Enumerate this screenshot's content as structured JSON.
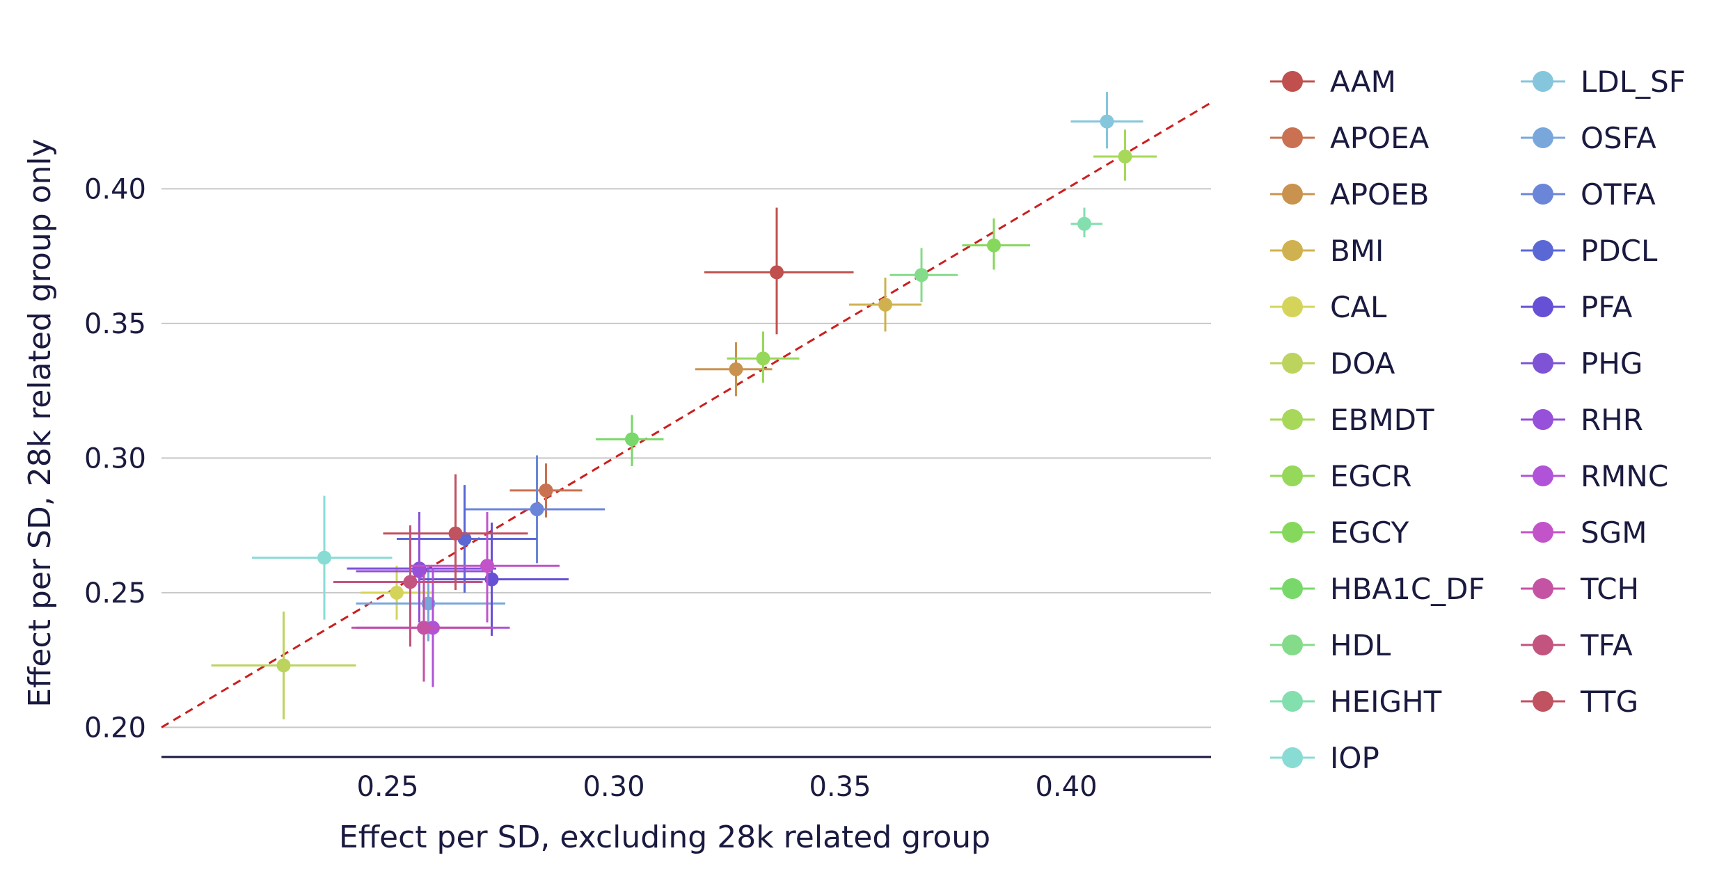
{
  "chart_data": {
    "type": "scatter",
    "title": "",
    "xlabel": "Effect per SD, excluding 28k related group",
    "ylabel": "Effect per SD, 28k related group only",
    "xlim": [
      0.2,
      0.432
    ],
    "ylim": [
      0.189,
      0.443
    ],
    "xticks": [
      "0.25",
      "0.30",
      "0.35",
      "0.40"
    ],
    "yticks": [
      "0.20",
      "0.25",
      "0.30",
      "0.35",
      "0.40"
    ],
    "grid": "horizontal",
    "legend_position": "right, two columns",
    "reference_line": {
      "style": "dashed",
      "color": "#cc1f1f",
      "from": [
        0.2,
        0.2
      ],
      "to": [
        0.432,
        0.432
      ]
    },
    "series": [
      {
        "name": "AAM",
        "color": "#c0504d",
        "x": 0.336,
        "y": 0.369,
        "xerr": [
          0.32,
          0.353
        ],
        "yerr": [
          0.346,
          0.393
        ]
      },
      {
        "name": "APOEA",
        "color": "#c97150",
        "x": 0.285,
        "y": 0.288,
        "xerr": [
          0.277,
          0.293
        ],
        "yerr": [
          0.278,
          0.298
        ]
      },
      {
        "name": "APOEB",
        "color": "#c9934f",
        "x": 0.327,
        "y": 0.333,
        "xerr": [
          0.318,
          0.335
        ],
        "yerr": [
          0.323,
          0.343
        ]
      },
      {
        "name": "BMI",
        "color": "#cfb24f",
        "x": 0.36,
        "y": 0.357,
        "xerr": [
          0.352,
          0.368
        ],
        "yerr": [
          0.347,
          0.367
        ]
      },
      {
        "name": "CAL",
        "color": "#d4d45a",
        "x": 0.252,
        "y": 0.25,
        "xerr": [
          0.244,
          0.26
        ],
        "yerr": [
          0.24,
          0.26
        ]
      },
      {
        "name": "DOA",
        "color": "#bcd45e",
        "x": 0.227,
        "y": 0.223,
        "xerr": [
          0.211,
          0.243
        ],
        "yerr": [
          0.203,
          0.243
        ]
      },
      {
        "name": "EBMDT",
        "color": "#a7d85a",
        "x": 0.413,
        "y": 0.412,
        "xerr": [
          0.406,
          0.42
        ],
        "yerr": [
          0.403,
          0.422
        ]
      },
      {
        "name": "EGCR",
        "color": "#96d85a",
        "x": 0.333,
        "y": 0.337,
        "xerr": [
          0.325,
          0.341
        ],
        "yerr": [
          0.328,
          0.347
        ]
      },
      {
        "name": "EGCY",
        "color": "#85d85c",
        "x": 0.384,
        "y": 0.379,
        "xerr": [
          0.377,
          0.392
        ],
        "yerr": [
          0.37,
          0.389
        ]
      },
      {
        "name": "HBA1C_DF",
        "color": "#79d86a",
        "x": 0.304,
        "y": 0.307,
        "xerr": [
          0.296,
          0.311
        ],
        "yerr": [
          0.297,
          0.316
        ]
      },
      {
        "name": "HDL",
        "color": "#84dc8a",
        "x": 0.368,
        "y": 0.368,
        "xerr": [
          0.361,
          0.376
        ],
        "yerr": [
          0.358,
          0.378
        ]
      },
      {
        "name": "HEIGHT",
        "color": "#83dfae",
        "x": 0.404,
        "y": 0.387,
        "xerr": [
          0.401,
          0.408
        ],
        "yerr": [
          0.382,
          0.393
        ]
      },
      {
        "name": "IOP",
        "color": "#88dcd4",
        "x": 0.236,
        "y": 0.263,
        "xerr": [
          0.22,
          0.251
        ],
        "yerr": [
          0.24,
          0.286
        ]
      },
      {
        "name": "LDL_SF",
        "color": "#85c6dc",
        "x": 0.409,
        "y": 0.425,
        "xerr": [
          0.401,
          0.417
        ],
        "yerr": [
          0.415,
          0.436
        ]
      },
      {
        "name": "OSFA",
        "color": "#79a7dc",
        "x": 0.259,
        "y": 0.246,
        "xerr": [
          0.243,
          0.276
        ],
        "yerr": [
          0.232,
          0.26
        ]
      },
      {
        "name": "OTFA",
        "color": "#6b86d9",
        "x": 0.283,
        "y": 0.281,
        "xerr": [
          0.267,
          0.298
        ],
        "yerr": [
          0.261,
          0.301
        ]
      },
      {
        "name": "PDCL",
        "color": "#5a68d6",
        "x": 0.267,
        "y": 0.27,
        "xerr": [
          0.252,
          0.283
        ],
        "yerr": [
          0.25,
          0.29
        ]
      },
      {
        "name": "PFA",
        "color": "#6650d6",
        "x": 0.273,
        "y": 0.255,
        "xerr": [
          0.257,
          0.29
        ],
        "yerr": [
          0.234,
          0.276
        ]
      },
      {
        "name": "PHG",
        "color": "#7f53d6",
        "x": 0.257,
        "y": 0.259,
        "xerr": [
          0.241,
          0.274
        ],
        "yerr": [
          0.239,
          0.28
        ]
      },
      {
        "name": "RHR",
        "color": "#9650d9",
        "x": 0.257,
        "y": 0.258,
        "xerr": [
          0.243,
          0.272
        ],
        "yerr": [
          0.239,
          0.277
        ]
      },
      {
        "name": "RMNC",
        "color": "#b053d9",
        "x": 0.26,
        "y": 0.237,
        "xerr": [
          0.243,
          0.277
        ],
        "yerr": [
          0.215,
          0.259
        ]
      },
      {
        "name": "SGM",
        "color": "#c353c9",
        "x": 0.272,
        "y": 0.26,
        "xerr": [
          0.255,
          0.288
        ],
        "yerr": [
          0.239,
          0.28
        ]
      },
      {
        "name": "TCH",
        "color": "#c553a4",
        "x": 0.258,
        "y": 0.237,
        "xerr": [
          0.242,
          0.273
        ],
        "yerr": [
          0.217,
          0.257
        ]
      },
      {
        "name": "TFA",
        "color": "#c2547f",
        "x": 0.255,
        "y": 0.254,
        "xerr": [
          0.238,
          0.271
        ],
        "yerr": [
          0.23,
          0.275
        ]
      },
      {
        "name": "TTG",
        "color": "#c15260",
        "x": 0.265,
        "y": 0.272,
        "xerr": [
          0.249,
          0.281
        ],
        "yerr": [
          0.251,
          0.294
        ]
      }
    ]
  }
}
